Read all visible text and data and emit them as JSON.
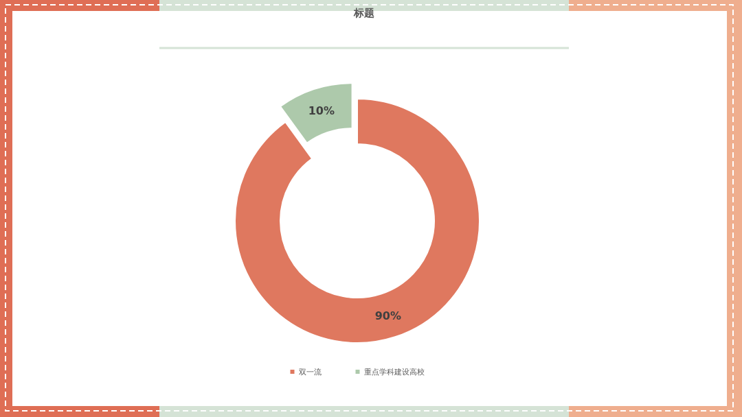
{
  "chart_data": {
    "type": "donut",
    "title": "标题",
    "categories": [
      "双一流",
      "重点学科建设高校"
    ],
    "values": [
      90,
      10
    ],
    "colors": [
      "#df785f",
      "#adc9ab"
    ],
    "value_labels": [
      "90%",
      "10%"
    ],
    "legend": "bottom"
  }
}
